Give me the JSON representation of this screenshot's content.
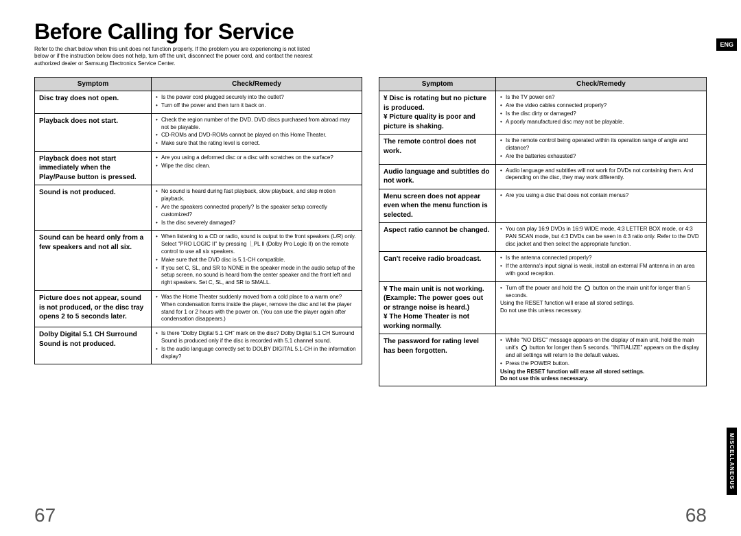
{
  "title": "Before Calling for Service",
  "intro": "Refer to the chart below when this unit does not function properly. If the problem you are experiencing is not listed below or if the instruction below does not help, turn off the unit, disconnect the power cord, and contact the nearest authorized dealer or Samsung Electronics Service Center.",
  "lang_badge": "ENG",
  "side_tab": "MISCELLANEOUS",
  "page_left": "67",
  "page_right": "68",
  "headers": {
    "symptom": "Symptom",
    "remedy": "Check/Remedy"
  },
  "left_rows": [
    {
      "s": "Disc tray does not open.",
      "r": [
        "Is the power cord plugged securely into the outlet?",
        "Turn off the power and then turn it back on."
      ]
    },
    {
      "s": "Playback does not start.",
      "r": [
        "Check the region number of the DVD.\nDVD discs purchased from abroad may not be playable.",
        "CD-ROMs and DVD-ROMs cannot be played on this Home Theater.",
        "Make sure that the rating level is correct."
      ]
    },
    {
      "s": "Playback does not start immediately when the Play/Pause button is pressed.",
      "r": [
        "Are you using a deformed disc or a disc with scratches on the surface?",
        "Wipe the disc clean."
      ]
    },
    {
      "s": "Sound is not produced.",
      "r": [
        "No sound is heard during fast playback, slow playback, and step motion playback.",
        "Are the speakers connected properly? Is the speaker setup correctly customized?",
        "Is the disc severely damaged?"
      ]
    },
    {
      "s": "Sound can be heard only from a few speakers and not all six.",
      "r": [
        "When listening to a CD or radio, sound is output to the front speakers (L/R) only. Select \"PRO LOGIC II\" by pressing ⎿PL II (Dolby Pro Logic II) on the remote control to use all six speakers.",
        "Make sure that the DVD disc is 5.1-CH compatible.",
        "If you set C, SL, and SR to NONE in the speaker mode in the audio setup of the setup screen, no sound is heard from the center speaker and the front left and right speakers. Set C, SL, and SR to SMALL."
      ]
    },
    {
      "s": "Picture does not appear, sound is not produced, or the disc tray opens 2 to 5 seconds later.",
      "r": [
        "Was the Home Theater suddenly moved from a cold place to a warm one? When condensation forms inside the player, remove the disc and let the player stand for 1 or 2 hours with the power on. (You can use the player again after condensation disappears.)"
      ]
    },
    {
      "s": "Dolby Digital 5.1 CH Surround Sound is not produced.",
      "r": [
        "Is there \"Dolby Digital 5.1 CH\" mark on the disc? Dolby Digital 5.1 CH Surround Sound is produced only if the disc is recorded with 5.1 channel sound.",
        "Is the audio language correctly set to DOLBY DIGITAL 5.1-CH in the information display?"
      ]
    }
  ],
  "right_rows": [
    {
      "s": "¥ Disc is rotating but no picture is produced.\n¥ Picture quality is poor and picture is shaking.",
      "r": [
        "Is the TV power on?",
        "Are the video cables connected properly?",
        "Is the disc dirty or damaged?",
        "A poorly manufactured disc may not be playable."
      ]
    },
    {
      "s": "The remote control does not work.",
      "r": [
        "Is the remote control being operated within its operation range of angle and distance?",
        "Are the batteries exhausted?"
      ]
    },
    {
      "s": "Audio language and subtitles do not work.",
      "r": [
        "Audio language and subtitles will not work for DVDs not containing them. And depending on the disc, they may work differently."
      ]
    },
    {
      "s": "Menu screen does not appear even when the menu function is selected.",
      "r": [
        "Are you using a disc that does not contain menus?"
      ]
    },
    {
      "s": "Aspect ratio cannot be changed.",
      "r": [
        "You can play 16:9 DVDs in 16:9 WIDE mode, 4:3 LETTER BOX mode, or 4:3 PAN SCAN mode, but 4:3 DVDs can be seen in 4:3 ratio only. Refer to the DVD disc jacket and then select the appropriate function."
      ]
    },
    {
      "s": "Can't receive radio broadcast.",
      "r": [
        "Is the antenna connected properly?",
        "If the antenna's input signal is weak, install an external FM antenna in an area with good reception."
      ]
    },
    {
      "s": "¥ The main unit is not working.\n(Example: The power goes out or strange noise is heard.)\n¥ The Home Theater is not working normally.",
      "r_html": "stop"
    },
    {
      "s": "The password for rating level has been forgotten.",
      "r_html": "password"
    }
  ],
  "stop_row": {
    "li1_a": "Turn off the power and hold the",
    "li1_b": "button on the main unit for longer than 5 seconds.",
    "note1": "Using the RESET function will erase all stored settings.",
    "note2": "Do not use this unless necessary."
  },
  "password_row": {
    "li1_a": "While \"NO DISC\" message appears on the display of main unit, hold the main unit's",
    "li1_b": "button for longer than 5 seconds. \"INITIALIZE\" appears on the display and all settings will return to the default values.",
    "li2": "Press the POWER button.",
    "note1": "Using the RESET function will erase all stored settings.",
    "note2": "Do not use this unless necessary."
  }
}
